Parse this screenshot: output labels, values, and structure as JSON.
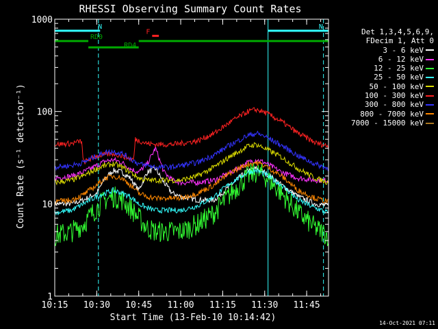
{
  "chart_data": {
    "type": "line",
    "title": "RHESSI Observing Summary Count Rates",
    "xlabel": "Start Time (13-Feb-10 10:14:42)",
    "ylabel": "Count Rate (s⁻¹ detector⁻¹)",
    "yscale": "log",
    "ylim": [
      1,
      1000
    ],
    "xlim": [
      10.25,
      11.88
    ],
    "x_ticks": [
      {
        "label": "10:15",
        "value": 10.25
      },
      {
        "label": "10:30",
        "value": 10.5
      },
      {
        "label": "10:45",
        "value": 10.75
      },
      {
        "label": "11:00",
        "value": 11.0
      },
      {
        "label": "11:15",
        "value": 11.25
      },
      {
        "label": "11:30",
        "value": 11.5
      },
      {
        "label": "11:45",
        "value": 11.75
      }
    ],
    "y_ticks": [
      {
        "label": "1",
        "value": 1
      },
      {
        "label": "10",
        "value": 10
      },
      {
        "label": "100",
        "value": 100
      },
      {
        "label": "1000",
        "value": 1000
      }
    ],
    "legend_header": [
      "Det 1,3,4,5,6,9,",
      "FDecim 1, Att 0"
    ],
    "series": [
      {
        "name": "3 - 6 keV",
        "color": "#ffffff",
        "x": [
          10.25,
          10.35,
          10.42,
          10.5,
          10.55,
          10.6,
          10.65,
          10.7,
          10.75,
          10.8,
          10.85,
          10.9,
          10.95,
          11.0,
          11.1,
          11.2,
          11.3,
          11.4,
          11.45,
          11.5,
          11.6,
          11.7,
          11.8,
          11.88
        ],
        "values": [
          10,
          10,
          11,
          13,
          19,
          23,
          22,
          19,
          14,
          22,
          24,
          17,
          13,
          12,
          11,
          11,
          16,
          23,
          24,
          22,
          16,
          12,
          10,
          9.5
        ]
      },
      {
        "name": "6 - 12 keV",
        "color": "#ff33ff",
        "x": [
          10.25,
          10.35,
          10.42,
          10.5,
          10.55,
          10.6,
          10.65,
          10.7,
          10.75,
          10.8,
          10.85,
          10.9,
          10.95,
          11.0,
          11.1,
          11.2,
          11.3,
          11.4,
          11.45,
          11.5,
          11.6,
          11.7,
          11.8,
          11.88
        ],
        "values": [
          19,
          20,
          22,
          26,
          29,
          30,
          28,
          24,
          22,
          27,
          40,
          22,
          18,
          17,
          17,
          18,
          22,
          28,
          30,
          28,
          22,
          19,
          18,
          18
        ]
      },
      {
        "name": "12 - 25 keV",
        "color": "#33ff33",
        "x": [
          10.25,
          10.35,
          10.42,
          10.5,
          10.55,
          10.6,
          10.65,
          10.7,
          10.75,
          10.8,
          10.85,
          10.9,
          10.95,
          11.0,
          11.1,
          11.2,
          11.3,
          11.4,
          11.45,
          11.5,
          11.6,
          11.7,
          11.8,
          11.88
        ],
        "values": [
          4.5,
          5,
          6,
          9,
          11,
          12,
          11,
          9,
          7,
          5.5,
          5,
          5,
          5,
          5,
          6,
          8,
          13,
          20,
          22,
          20,
          13,
          8,
          5.5,
          4.5
        ]
      },
      {
        "name": "25 - 50 keV",
        "color": "#33ffff",
        "x": [
          10.25,
          10.35,
          10.42,
          10.5,
          10.55,
          10.6,
          10.65,
          10.7,
          10.75,
          10.8,
          10.85,
          10.9,
          10.95,
          11.0,
          11.1,
          11.2,
          11.3,
          11.4,
          11.45,
          11.5,
          11.6,
          11.7,
          11.8,
          11.88
        ],
        "values": [
          8,
          8.5,
          10,
          12,
          13,
          14,
          13,
          12,
          10,
          9,
          8.5,
          8.5,
          8.5,
          8.5,
          9.5,
          12,
          17,
          22,
          23,
          21,
          16,
          11,
          9,
          8
        ]
      },
      {
        "name": "50 - 100 keV",
        "color": "#dddd00",
        "x": [
          10.25,
          10.35,
          10.42,
          10.5,
          10.55,
          10.6,
          10.65,
          10.7,
          10.75,
          10.8,
          10.85,
          10.9,
          10.95,
          11.0,
          11.1,
          11.2,
          11.3,
          11.4,
          11.45,
          11.5,
          11.6,
          11.7,
          11.8,
          11.88
        ],
        "values": [
          17,
          18,
          20,
          24,
          26,
          27,
          25,
          22,
          19,
          18,
          18,
          18,
          18,
          18,
          20,
          25,
          33,
          42,
          44,
          40,
          32,
          24,
          19,
          17
        ]
      },
      {
        "name": "100 - 300 keV",
        "color": "#ff2222",
        "x": [
          10.25,
          10.35,
          10.41,
          10.42,
          10.5,
          10.55,
          10.6,
          10.65,
          10.72,
          10.73,
          10.8,
          10.85,
          10.9,
          10.95,
          11.0,
          11.1,
          11.2,
          11.3,
          11.4,
          11.45,
          11.5,
          11.6,
          11.7,
          11.8,
          11.88
        ],
        "values": [
          44,
          45,
          48,
          28,
          33,
          34,
          35,
          33,
          30,
          50,
          45,
          44,
          44,
          44,
          45,
          48,
          58,
          78,
          100,
          105,
          98,
          78,
          58,
          46,
          42
        ]
      },
      {
        "name": "300 - 800 keV",
        "color": "#3333ff",
        "x": [
          10.25,
          10.35,
          10.42,
          10.5,
          10.55,
          10.6,
          10.65,
          10.7,
          10.75,
          10.8,
          10.85,
          10.9,
          10.95,
          11.0,
          11.1,
          11.2,
          11.3,
          11.4,
          11.45,
          11.5,
          11.6,
          11.7,
          11.8,
          11.88
        ],
        "values": [
          25,
          26,
          28,
          33,
          36,
          37,
          35,
          31,
          27,
          26,
          25,
          25,
          25,
          26,
          28,
          34,
          44,
          55,
          58,
          54,
          43,
          33,
          27,
          24
        ]
      },
      {
        "name": "800 - 7000 keV",
        "color": "#ff8800",
        "x": [
          10.25,
          10.35,
          10.42,
          10.5,
          10.55,
          10.6,
          10.65,
          10.7,
          10.75,
          10.8,
          10.85,
          10.9,
          10.95,
          11.0,
          11.1,
          11.2,
          11.3,
          11.4,
          11.45,
          11.5,
          11.6,
          11.7,
          11.8,
          11.88
        ],
        "values": [
          10.5,
          11,
          12.5,
          16,
          19,
          20,
          19,
          16,
          13,
          12,
          11.5,
          11.5,
          11.5,
          11.5,
          13,
          16,
          22,
          27,
          28,
          26,
          20,
          14,
          11.5,
          10.5
        ]
      },
      {
        "name": "7000 - 15000 keV",
        "color": "#aa7722",
        "x": [],
        "values": []
      }
    ],
    "annotations": [
      {
        "label": "N",
        "color": "#33ffff",
        "x_start": 10.25,
        "x_end": 10.52,
        "y": 750
      },
      {
        "label": "N",
        "color": "#33ffff",
        "x_start": 11.52,
        "x_end": 11.88,
        "y": 750
      },
      {
        "label": "RD0",
        "color": "#00aa00",
        "x_start": 10.25,
        "x_end": 10.45,
        "y": 580
      },
      {
        "label": "RD4",
        "color": "#00aa00",
        "x_start": 10.45,
        "x_end": 10.75,
        "y": 495
      },
      {
        "label": "",
        "color": "#00aa00",
        "x_start": 10.75,
        "x_end": 11.88,
        "y": 580
      },
      {
        "label": "F",
        "color": "#ff2222",
        "x_start": 10.83,
        "x_end": 10.87,
        "y": 660
      }
    ],
    "night_lines": [
      10.25,
      10.51,
      11.52,
      11.85
    ]
  },
  "footer_timestamp": "14-Oct-2021 07:11"
}
